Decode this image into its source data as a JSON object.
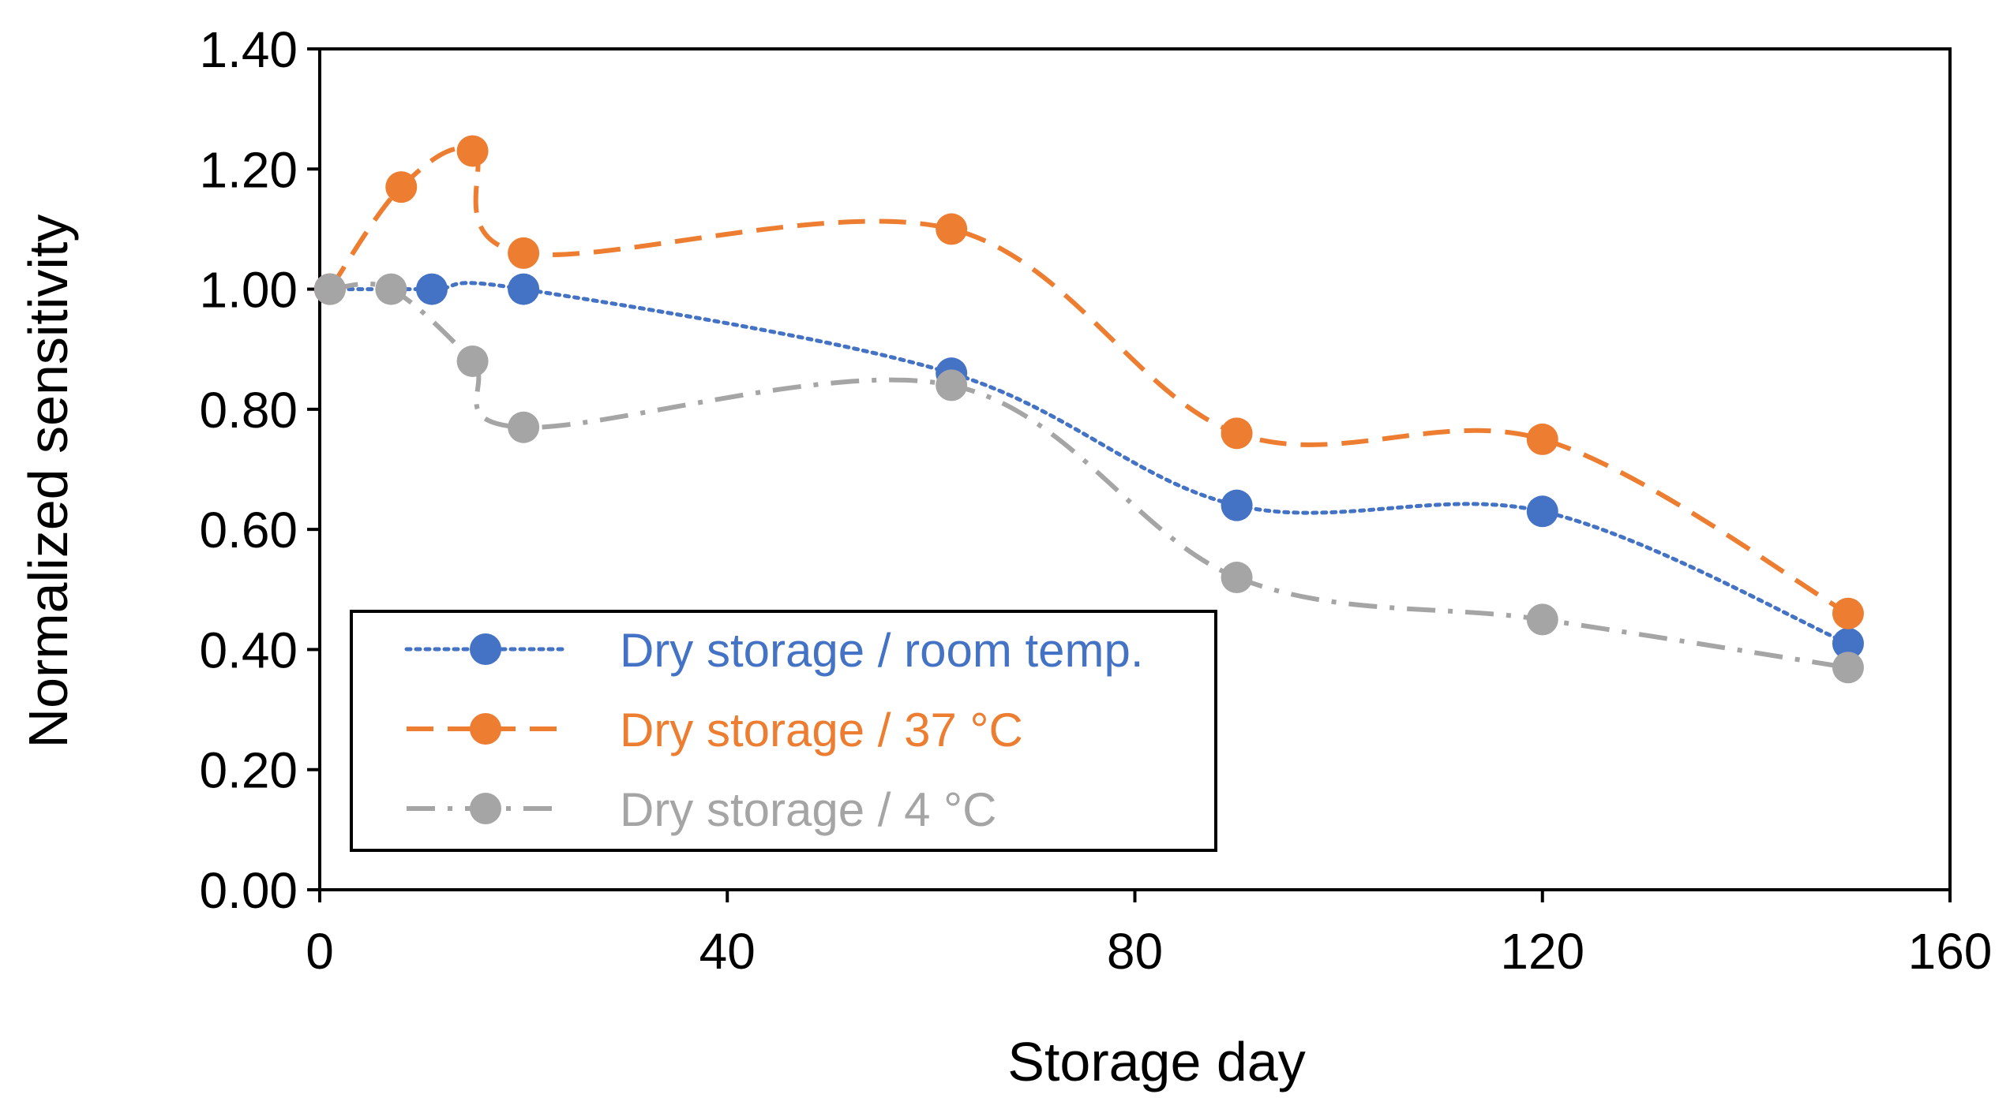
{
  "chart_data": {
    "type": "line",
    "title": "",
    "xlabel": "Storage day",
    "ylabel": "Normalized sensitivity",
    "xlim": [
      0,
      160
    ],
    "ylim": [
      0,
      1.4
    ],
    "xticks": [
      0,
      40,
      80,
      120,
      160
    ],
    "yticks": [
      0,
      0.2,
      0.4,
      0.6,
      0.8,
      1.0,
      1.2,
      1.4
    ],
    "xtick_labels": [
      "0",
      "40",
      "80",
      "120",
      "160"
    ],
    "ytick_labels": [
      "0.00",
      "0.20",
      "0.40",
      "0.60",
      "0.80",
      "1.00",
      "1.20",
      "1.40"
    ],
    "grid": false,
    "legend_position": "bottom-left",
    "series": [
      {
        "name": "Dry storage / room temp.",
        "color": "#4472C4",
        "line_style": "dotted",
        "marker": "circle",
        "x": [
          1,
          11,
          20,
          62,
          90,
          120,
          150
        ],
        "y": [
          1.0,
          1.0,
          1.0,
          0.86,
          0.64,
          0.63,
          0.41
        ]
      },
      {
        "name": "Dry storage / 37 °C",
        "color": "#ED7D31",
        "line_style": "dashed",
        "marker": "circle",
        "x": [
          1,
          8,
          15,
          20,
          62,
          90,
          120,
          150
        ],
        "y": [
          1.0,
          1.17,
          1.23,
          1.06,
          1.1,
          0.76,
          0.75,
          0.46
        ]
      },
      {
        "name": "Dry storage / 4 °C",
        "color": "#A5A5A5",
        "line_style": "dashdot",
        "marker": "circle",
        "x": [
          1,
          7,
          15,
          20,
          62,
          90,
          120,
          150
        ],
        "y": [
          1.0,
          1.0,
          0.88,
          0.77,
          0.84,
          0.52,
          0.45,
          0.37
        ]
      }
    ]
  }
}
